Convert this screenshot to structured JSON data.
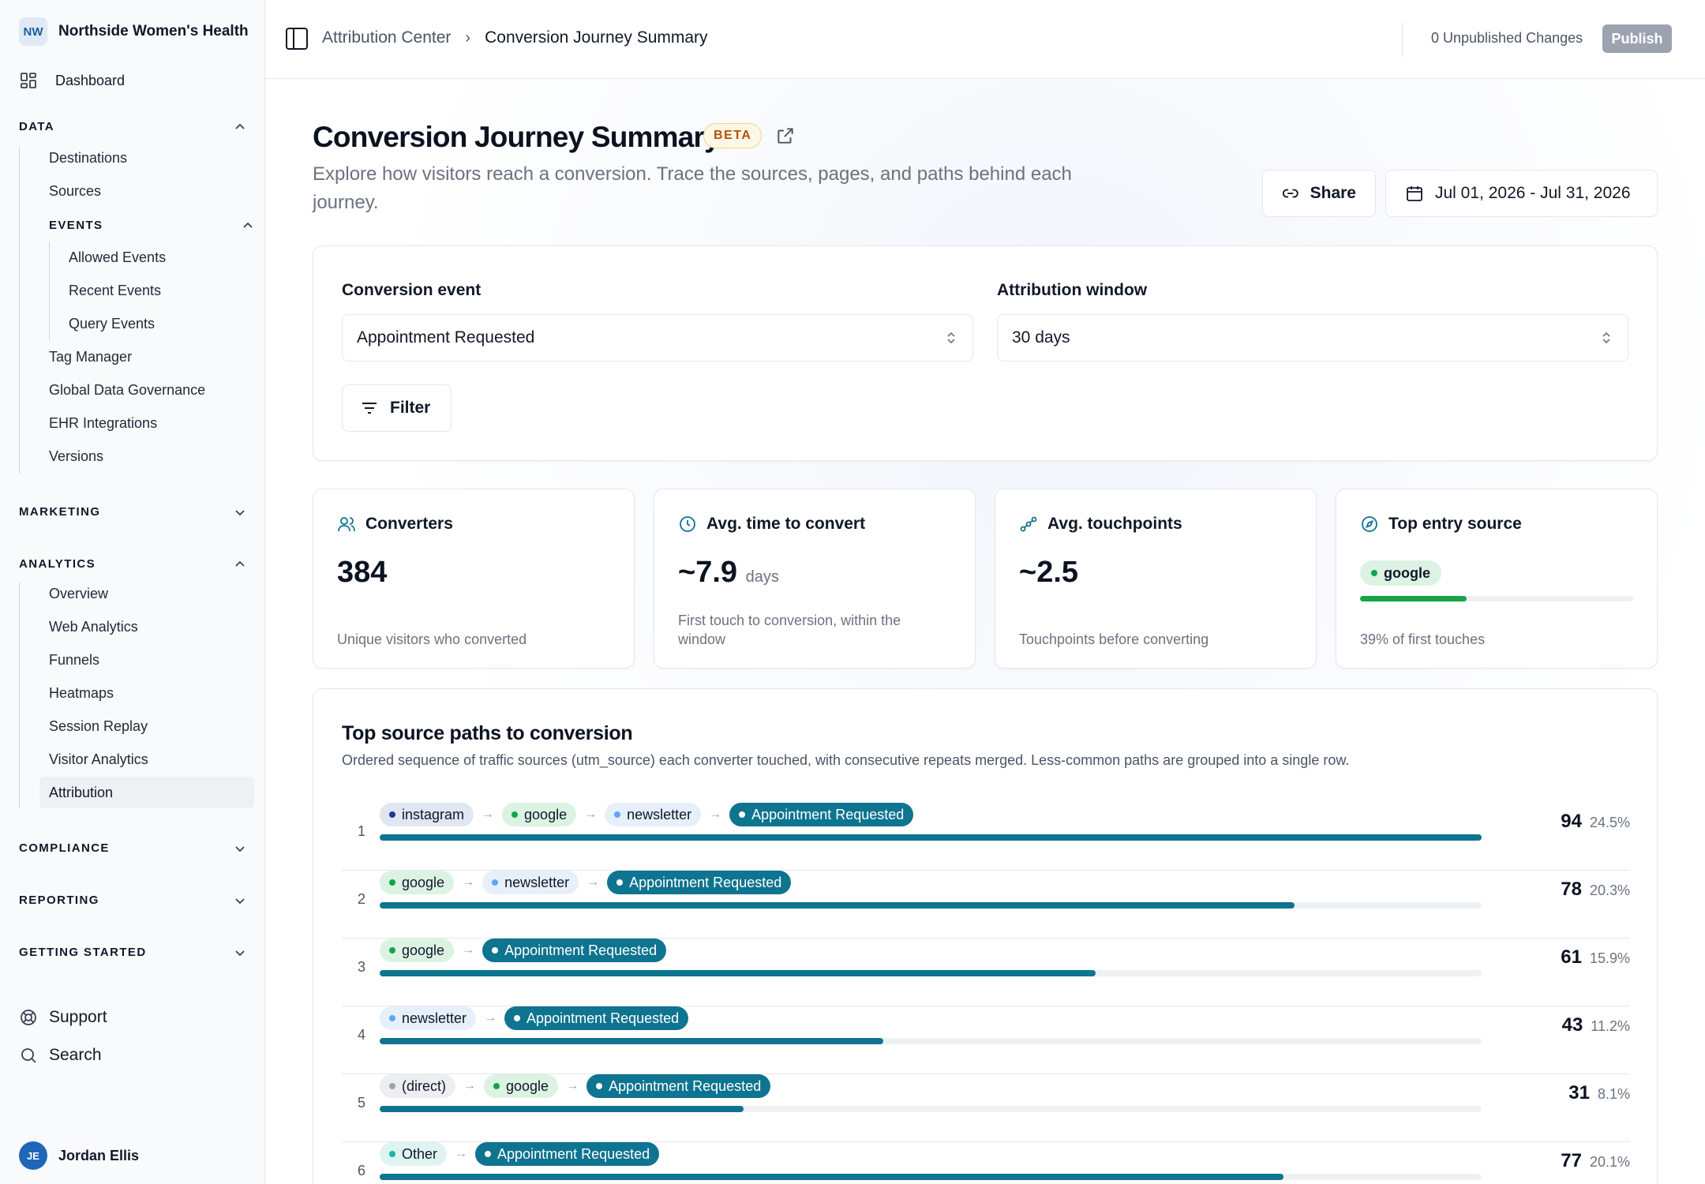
{
  "org": {
    "initials": "NW",
    "name": "Northside Women's Health"
  },
  "sidebar": {
    "dashboard": "Dashboard",
    "data": {
      "title": "DATA",
      "items": [
        "Destinations",
        "Sources"
      ],
      "events": {
        "title": "EVENTS",
        "items": [
          "Allowed Events",
          "Recent Events",
          "Query Events"
        ]
      },
      "more": [
        "Tag Manager",
        "Global Data Governance",
        "EHR Integrations",
        "Versions"
      ]
    },
    "marketing": "MARKETING",
    "analytics": {
      "title": "ANALYTICS",
      "items": [
        "Overview",
        "Web Analytics",
        "Funnels",
        "Heatmaps",
        "Session Replay",
        "Visitor Analytics",
        "Attribution"
      ]
    },
    "compliance": "COMPLIANCE",
    "reporting": "REPORTING",
    "getting_started": "GETTING STARTED",
    "support": "Support",
    "search": "Search",
    "user": {
      "initials": "JE",
      "name": "Jordan Ellis"
    }
  },
  "topbar": {
    "crumb_parent": "Attribution Center",
    "crumb_current": "Conversion Journey Summary",
    "unpublished": "0 Unpublished Changes",
    "publish": "Publish"
  },
  "page": {
    "title": "Conversion Journey Summary",
    "badge": "BETA",
    "subtitle": "Explore how visitors reach a conversion. Trace the sources, pages, and paths behind each journey.",
    "share": "Share",
    "date_range": "Jul 01, 2026 - Jul 31, 2026"
  },
  "filters": {
    "conversion_label": "Conversion event",
    "conversion_value": "Appointment Requested",
    "window_label": "Attribution window",
    "window_value": "30 days",
    "filter_button": "Filter"
  },
  "stats": {
    "converters": {
      "label": "Converters",
      "value": "384",
      "desc": "Unique visitors who converted"
    },
    "avg_time": {
      "label": "Avg. time to convert",
      "value": "~7.9",
      "unit": "days",
      "desc": "First touch to conversion, within the window"
    },
    "touchpoints": {
      "label": "Avg. touchpoints",
      "value": "~2.5",
      "desc": "Touchpoints before converting"
    },
    "top_source": {
      "label": "Top entry source",
      "source": "google",
      "share": 0.39,
      "desc": "39% of first touches"
    }
  },
  "colors": {
    "accent": "#0e7490",
    "google": "#16a34a",
    "instagram": "#1e3a8a",
    "newsletter": "#60a5fa",
    "direct": "#9ca3af",
    "other": "#14b8a6"
  },
  "paths": {
    "title": "Top source paths to conversion",
    "description": "Ordered sequence of traffic sources (utm_source) each converter touched, with consecutive repeats merged. Less-common paths are grouped into a single row.",
    "conversion_label": "Appointment Requested",
    "rows": [
      {
        "rank": "1",
        "steps": [
          "instagram",
          "google",
          "newsletter"
        ],
        "count": "94",
        "pct": "24.5%",
        "share": 1.0
      },
      {
        "rank": "2",
        "steps": [
          "google",
          "newsletter"
        ],
        "count": "78",
        "pct": "20.3%",
        "share": 0.83
      },
      {
        "rank": "3",
        "steps": [
          "google"
        ],
        "count": "61",
        "pct": "15.9%",
        "share": 0.65
      },
      {
        "rank": "4",
        "steps": [
          "newsletter"
        ],
        "count": "43",
        "pct": "11.2%",
        "share": 0.457
      },
      {
        "rank": "5",
        "steps": [
          "(direct)",
          "google"
        ],
        "count": "31",
        "pct": "8.1%",
        "share": 0.33
      },
      {
        "rank": "6",
        "steps": [
          "Other"
        ],
        "count": "77",
        "pct": "20.1%",
        "share": 0.82
      }
    ]
  }
}
